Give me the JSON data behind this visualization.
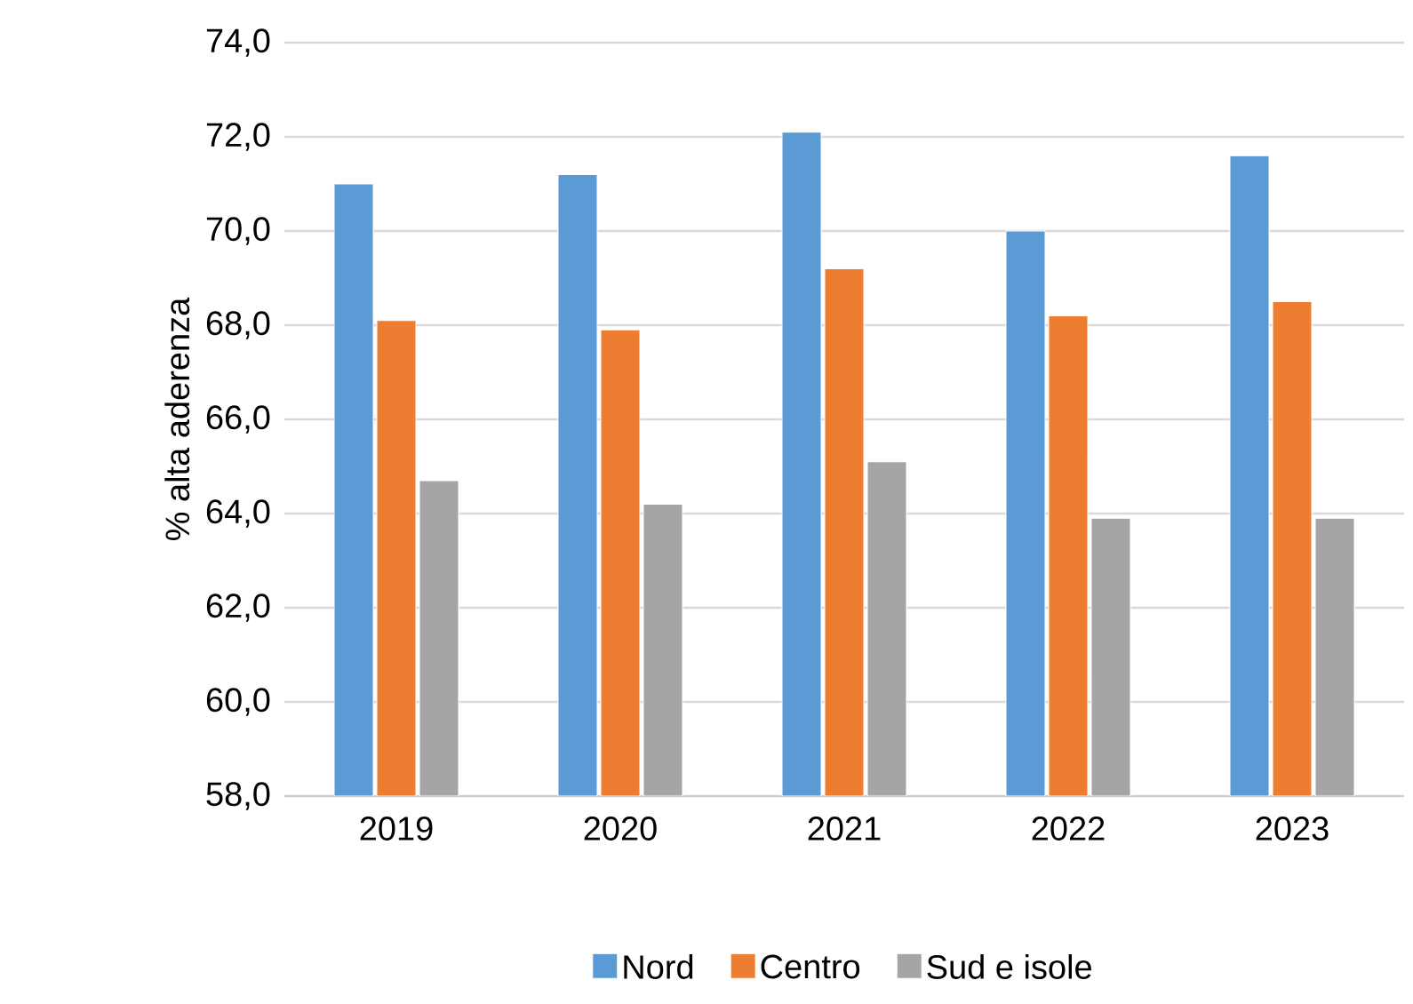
{
  "chart_data": {
    "type": "bar",
    "ylabel": "% alta aderenza",
    "categories": [
      "2019",
      "2020",
      "2021",
      "2022",
      "2023"
    ],
    "series": [
      {
        "name": "Nord",
        "color": "#5b9bd5",
        "values": [
          71.0,
          71.2,
          72.1,
          70.0,
          71.6
        ]
      },
      {
        "name": "Centro",
        "color": "#ed7d31",
        "values": [
          68.1,
          67.9,
          69.2,
          68.2,
          68.5
        ]
      },
      {
        "name": "Sud e isole",
        "color": "#a5a5a5",
        "values": [
          64.7,
          64.2,
          65.1,
          63.9,
          63.9
        ]
      }
    ],
    "ylim": [
      58,
      74
    ],
    "yticks": [
      {
        "value": 58,
        "label": "58,0"
      },
      {
        "value": 60,
        "label": "60,0"
      },
      {
        "value": 62,
        "label": "62,0"
      },
      {
        "value": 64,
        "label": "64,0"
      },
      {
        "value": 66,
        "label": "66,0"
      },
      {
        "value": 68,
        "label": "68,0"
      },
      {
        "value": 70,
        "label": "70,0"
      },
      {
        "value": 72,
        "label": "72,0"
      },
      {
        "value": 74,
        "label": "74,0"
      }
    ],
    "grid": "y",
    "legend": "bottom"
  }
}
